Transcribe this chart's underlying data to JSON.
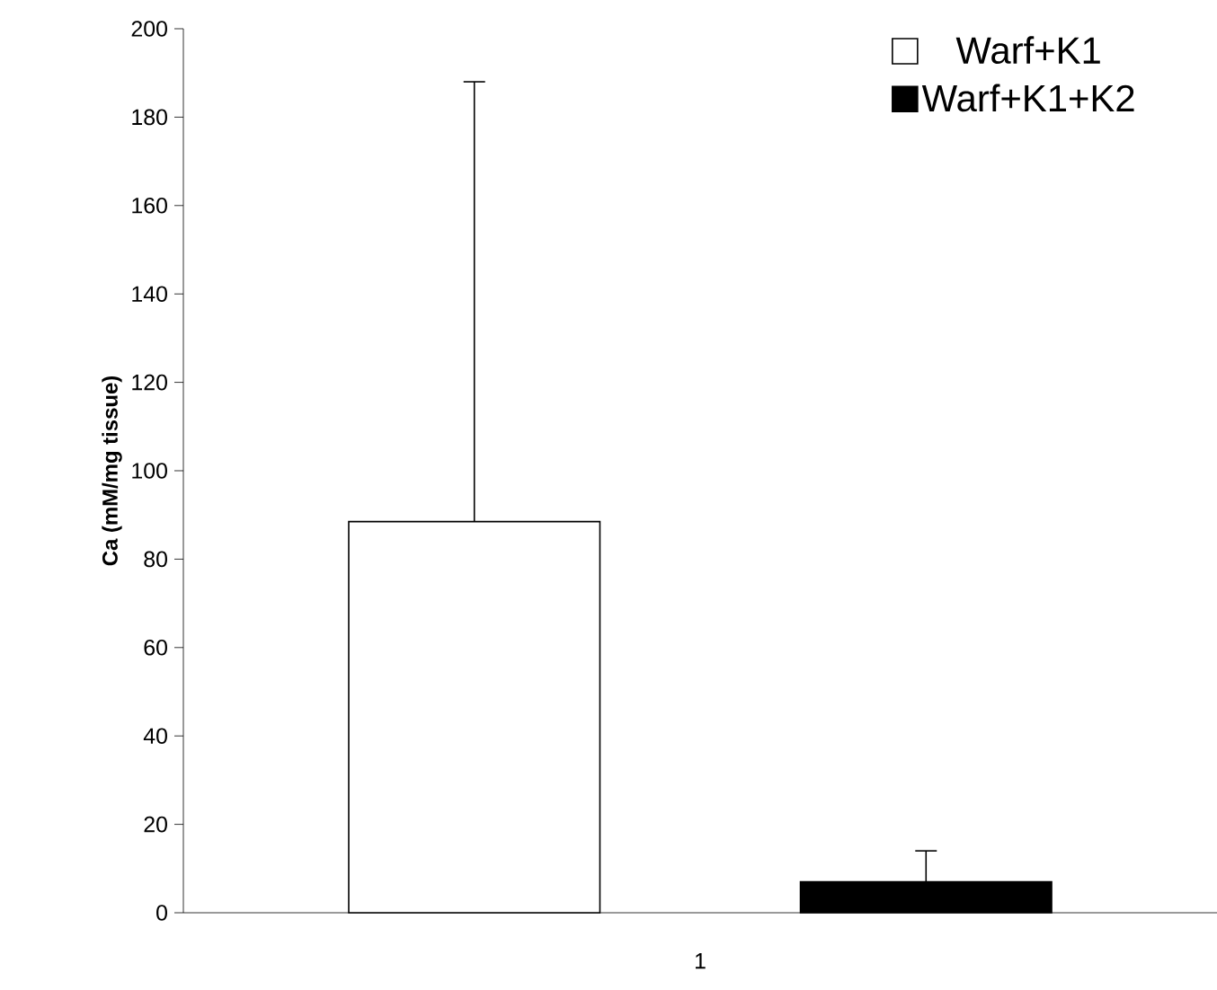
{
  "chart_data": {
    "type": "bar",
    "ylabel": "Ca (mM/mg tissue)",
    "categories": [
      "1"
    ],
    "series": [
      {
        "name": "Warf+K1",
        "color": "#ffffff",
        "values": [
          88.5
        ],
        "errors": [
          [
            88.5,
            188
          ]
        ]
      },
      {
        "name": "Warf+K1+K2",
        "color": "#000000",
        "values": [
          7
        ],
        "errors": [
          [
            7,
            14
          ]
        ]
      }
    ],
    "ylim": [
      0,
      200
    ],
    "yticks": [
      0,
      20,
      40,
      60,
      80,
      100,
      120,
      140,
      160,
      180,
      200
    ],
    "legend": "top right",
    "grid": false
  }
}
